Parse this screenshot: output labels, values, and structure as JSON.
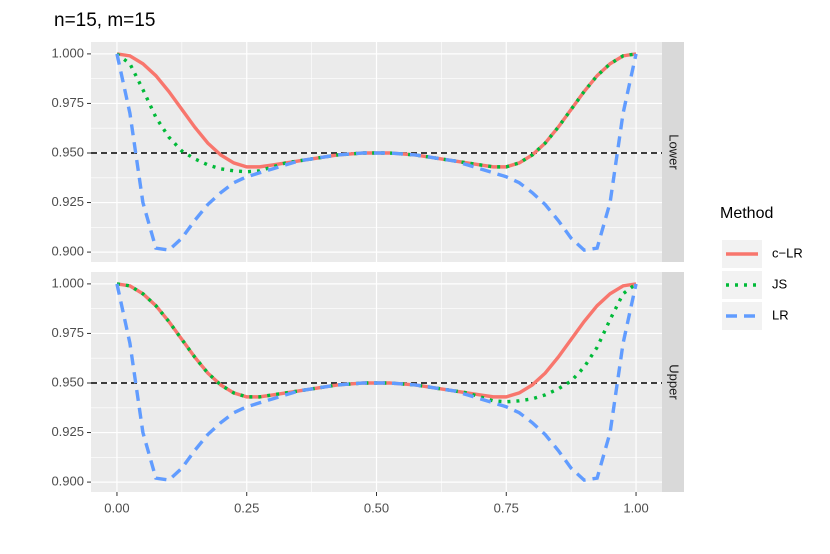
{
  "title": "n=15, m=15",
  "legend_title": "Method",
  "chart_data": {
    "type": "line",
    "facets": [
      "Lower",
      "Upper"
    ],
    "x": [
      0,
      0.025,
      0.05,
      0.075,
      0.1,
      0.125,
      0.15,
      0.175,
      0.2,
      0.225,
      0.25,
      0.275,
      0.3,
      0.325,
      0.35,
      0.375,
      0.4,
      0.425,
      0.45,
      0.475,
      0.5,
      0.525,
      0.55,
      0.575,
      0.6,
      0.625,
      0.65,
      0.675,
      0.7,
      0.725,
      0.75,
      0.775,
      0.8,
      0.825,
      0.85,
      0.875,
      0.9,
      0.925,
      0.95,
      0.975,
      1
    ],
    "xlim": [
      -0.05,
      1.05
    ],
    "xticks": [
      {
        "value": 0,
        "label": "0.00"
      },
      {
        "value": 0.25,
        "label": "0.25"
      },
      {
        "value": 0.5,
        "label": "0.50"
      },
      {
        "value": 0.75,
        "label": "0.75"
      },
      {
        "value": 1,
        "label": "1.00"
      }
    ],
    "ylim": [
      0.895,
      1.006
    ],
    "yticks": [
      {
        "value": 0.9,
        "label": "0.900"
      },
      {
        "value": 0.925,
        "label": "0.925"
      },
      {
        "value": 0.95,
        "label": "0.950"
      },
      {
        "value": 0.975,
        "label": "0.975"
      },
      {
        "value": 1,
        "label": "1.000"
      }
    ],
    "hline": 0.95,
    "grid": true,
    "series": [
      {
        "name": "c−LR",
        "color": "#F8766D",
        "dash": "solid",
        "values": [
          [
            1,
            0.999,
            0.995,
            0.989,
            0.981,
            0.972,
            0.963,
            0.955,
            0.949,
            0.945,
            0.943,
            0.943,
            0.944,
            0.945,
            0.946,
            0.947,
            0.948,
            0.949,
            0.9495,
            0.95,
            0.95,
            0.95,
            0.9495,
            0.949,
            0.948,
            0.947,
            0.946,
            0.945,
            0.944,
            0.943,
            0.943,
            0.945,
            0.949,
            0.955,
            0.963,
            0.972,
            0.981,
            0.989,
            0.995,
            0.999,
            1
          ],
          [
            1,
            0.999,
            0.995,
            0.989,
            0.981,
            0.972,
            0.963,
            0.955,
            0.949,
            0.945,
            0.943,
            0.943,
            0.944,
            0.945,
            0.946,
            0.947,
            0.948,
            0.949,
            0.9495,
            0.95,
            0.95,
            0.95,
            0.9495,
            0.949,
            0.948,
            0.947,
            0.946,
            0.945,
            0.944,
            0.943,
            0.943,
            0.945,
            0.949,
            0.955,
            0.963,
            0.972,
            0.981,
            0.989,
            0.995,
            0.999,
            1
          ]
        ]
      },
      {
        "name": "JS",
        "color": "#00BA38",
        "dash": "dotted",
        "values": [
          [
            1,
            0.995,
            0.982,
            0.968,
            0.958,
            0.951,
            0.947,
            0.944,
            0.942,
            0.941,
            0.9405,
            0.941,
            0.943,
            0.945,
            0.946,
            0.947,
            0.948,
            0.949,
            0.9495,
            0.95,
            0.95,
            0.95,
            0.9495,
            0.949,
            0.948,
            0.947,
            0.946,
            0.945,
            0.944,
            0.943,
            0.943,
            0.945,
            0.949,
            0.955,
            0.963,
            0.972,
            0.981,
            0.989,
            0.995,
            0.999,
            1
          ],
          [
            1,
            0.999,
            0.995,
            0.989,
            0.981,
            0.972,
            0.963,
            0.955,
            0.949,
            0.945,
            0.943,
            0.943,
            0.944,
            0.945,
            0.946,
            0.947,
            0.948,
            0.949,
            0.9495,
            0.95,
            0.95,
            0.95,
            0.9495,
            0.949,
            0.948,
            0.947,
            0.946,
            0.945,
            0.943,
            0.941,
            0.9405,
            0.941,
            0.942,
            0.944,
            0.947,
            0.951,
            0.958,
            0.968,
            0.982,
            0.995,
            1
          ]
        ]
      },
      {
        "name": "LR",
        "color": "#619CFF",
        "dash": "dashed",
        "values": [
          [
            1,
            0.97,
            0.925,
            0.902,
            0.901,
            0.907,
            0.916,
            0.924,
            0.93,
            0.935,
            0.938,
            0.94,
            0.942,
            0.944,
            0.946,
            0.947,
            0.948,
            0.949,
            0.9495,
            0.95,
            0.95,
            0.95,
            0.9495,
            0.949,
            0.948,
            0.947,
            0.946,
            0.944,
            0.942,
            0.94,
            0.938,
            0.935,
            0.93,
            0.924,
            0.916,
            0.907,
            0.901,
            0.902,
            0.925,
            0.97,
            1
          ],
          [
            1,
            0.97,
            0.925,
            0.902,
            0.901,
            0.907,
            0.916,
            0.924,
            0.93,
            0.935,
            0.938,
            0.94,
            0.942,
            0.944,
            0.946,
            0.947,
            0.948,
            0.949,
            0.9495,
            0.95,
            0.95,
            0.95,
            0.9495,
            0.949,
            0.948,
            0.947,
            0.946,
            0.944,
            0.942,
            0.94,
            0.938,
            0.935,
            0.93,
            0.924,
            0.916,
            0.907,
            0.901,
            0.902,
            0.925,
            0.97,
            1
          ]
        ]
      }
    ]
  }
}
